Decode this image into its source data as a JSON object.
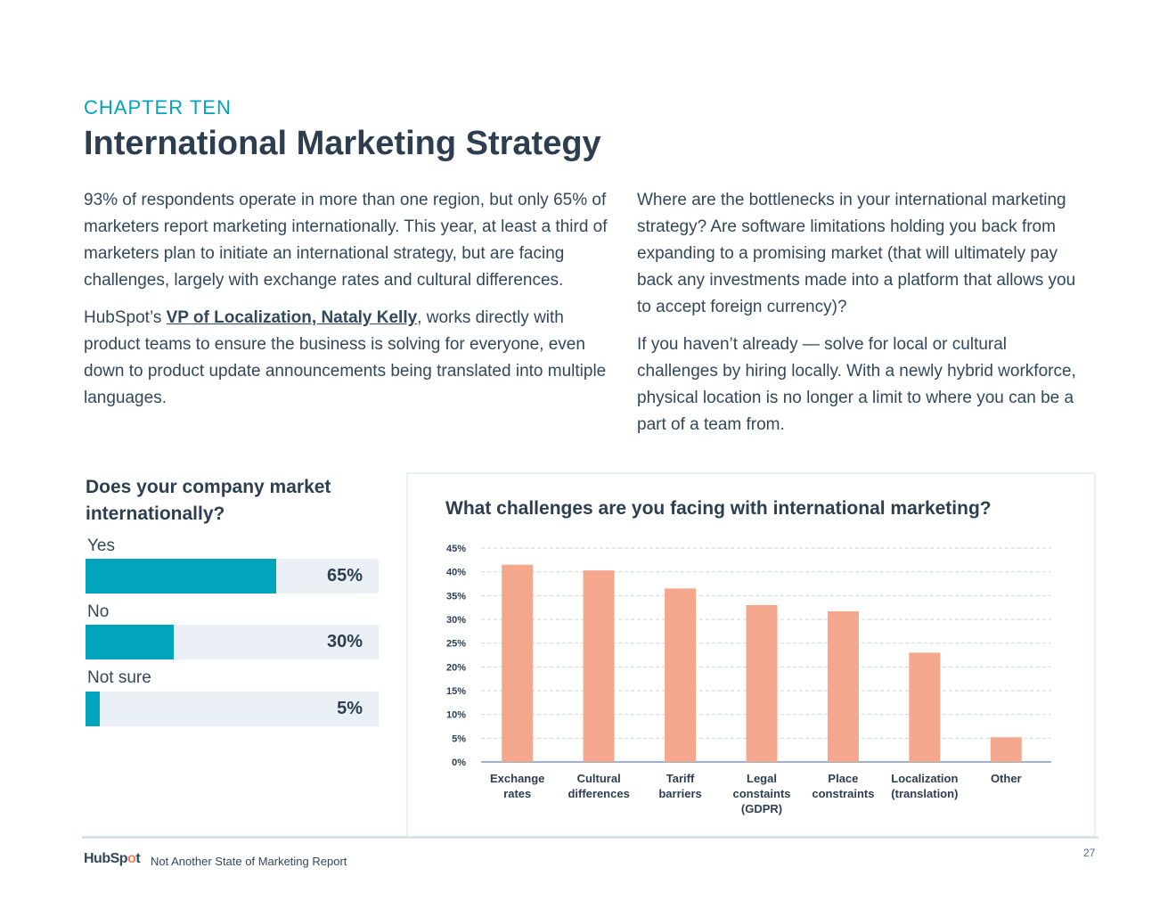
{
  "header": {
    "chapter": "CHAPTER TEN",
    "title": "International Marketing Strategy"
  },
  "body": {
    "left_p1": "93% of respondents operate in more than one region, but only 65% of marketers report marketing internationally. This year, at least a third of marketers plan to initiate an international strategy, but are facing challenges, largely with exchange rates and cultural differences.",
    "left_p2_pre": "HubSpot’s ",
    "left_p2_link": "VP of Localization, Nataly Kelly",
    "left_p2_post": ", works directly with product teams to ensure the business is solving for everyone, even down to product update announcements being translated into multiple languages.",
    "right_p1": "Where are the bottlenecks in your international marketing strategy? Are software limitations holding you back from expanding to a promising market (that will ultimately pay back any investments made into a platform that allows you to accept foreign currency)?",
    "right_p2": "If you haven’t already — solve for local or cultural challenges by hiring locally. With a newly hybrid workforce, physical location is no longer a limit to where you can be a part of a team from."
  },
  "chart_data": [
    {
      "type": "bar",
      "orientation": "horizontal",
      "title": "Does your company market internationally?",
      "categories": [
        "Yes",
        "No",
        "Not sure"
      ],
      "values": [
        65,
        30,
        5
      ],
      "value_labels": [
        "65%",
        "30%",
        "5%"
      ],
      "xlim": [
        0,
        100
      ],
      "color": "#00a4bd",
      "track_color": "#eaf0f6"
    },
    {
      "type": "bar",
      "title": "What challenges are you facing with international marketing?",
      "categories": [
        [
          "Exchange",
          "rates"
        ],
        [
          "Cultural",
          "differences"
        ],
        [
          "Tariff",
          "barriers"
        ],
        [
          "Legal",
          "constaints",
          "(GDPR)"
        ],
        [
          "Place",
          "constraints"
        ],
        [
          "Localization",
          "(translation)"
        ],
        [
          "Other"
        ]
      ],
      "values": [
        41.5,
        40.3,
        36.5,
        33,
        31.7,
        23,
        5.2
      ],
      "ylim": [
        0,
        45
      ],
      "yticks": [
        "0%",
        "5%",
        "10%",
        "15%",
        "20%",
        "25%",
        "30%",
        "35%",
        "40%",
        "45%"
      ],
      "grid": true,
      "color": "#f5a78e"
    }
  ],
  "footer": {
    "logo_pre": "HubSp",
    "logo_o": "o",
    "logo_post": "t",
    "report": "Not Another State of Marketing Report",
    "page": "27"
  }
}
